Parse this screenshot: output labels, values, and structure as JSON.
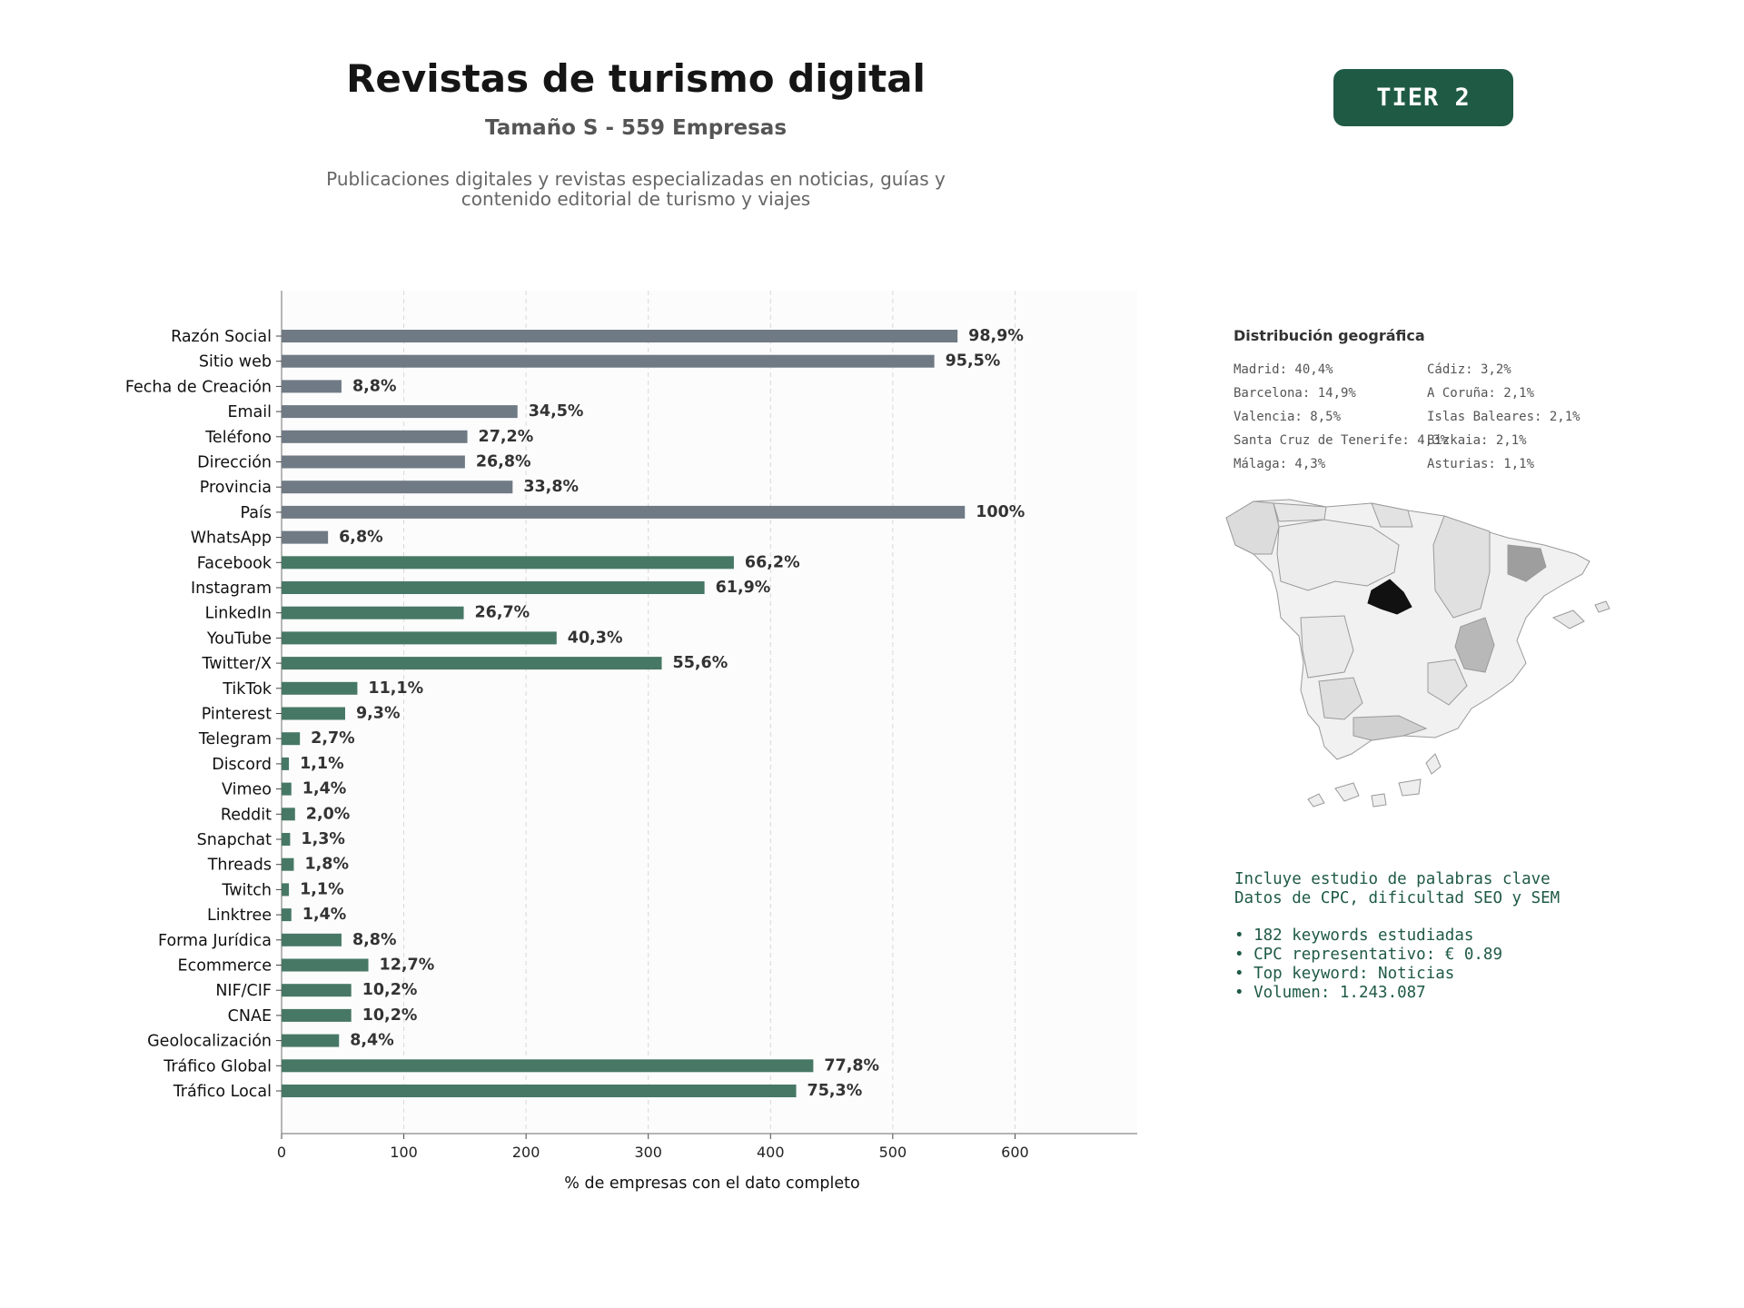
{
  "header": {
    "title": "Revistas de turismo digital",
    "subtitle": "Tamaño S - 559 Empresas",
    "description": "Publicaciones digitales y revistas especializadas en noticias, guías y contenido editorial de turismo y viajes",
    "tier": "TIER 2"
  },
  "chart_data": {
    "type": "bar",
    "orientation": "horizontal",
    "xlabel": "% de empresas con el dato completo",
    "ylabel": "",
    "xlim": [
      0,
      700
    ],
    "xticks": [
      0,
      100,
      200,
      300,
      400,
      500,
      600
    ],
    "grid": true,
    "categories": [
      "Razón Social",
      "Sitio web",
      "Fecha de Creación",
      "Email",
      "Teléfono",
      "Dirección",
      "Provincia",
      "País",
      "WhatsApp",
      "Facebook",
      "Instagram",
      "LinkedIn",
      "YouTube",
      "Twitter/X",
      "TikTok",
      "Pinterest",
      "Telegram",
      "Discord",
      "Vimeo",
      "Reddit",
      "Snapchat",
      "Threads",
      "Twitch",
      "Linktree",
      "Forma Jurídica",
      "Ecommerce",
      "NIF/CIF",
      "CNAE",
      "Geolocalización",
      "Tráfico Global",
      "Tráfico Local"
    ],
    "values": [
      553,
      534,
      49,
      193,
      152,
      150,
      189,
      559,
      38,
      370,
      346,
      149,
      225,
      311,
      62,
      52,
      15,
      6,
      8,
      11,
      7,
      10,
      6,
      8,
      49,
      71,
      57,
      57,
      47,
      435,
      421
    ],
    "labels": [
      "98,9%",
      "95,5%",
      "8,8%",
      "34,5%",
      "27,2%",
      "26,8%",
      "33,8%",
      "100%",
      "6,8%",
      "66,2%",
      "61,9%",
      "26,7%",
      "40,3%",
      "55,6%",
      "11,1%",
      "9,3%",
      "2,7%",
      "1,1%",
      "1,4%",
      "2,0%",
      "1,3%",
      "1,8%",
      "1,1%",
      "1,4%",
      "8,8%",
      "12,7%",
      "10,2%",
      "10,2%",
      "8,4%",
      "77,8%",
      "75,3%"
    ],
    "group_split": 9,
    "colors": {
      "basic": "#6f7a85",
      "digital": "#477866",
      "label": "#333333",
      "grid": "#d9d9d9",
      "plot_bg": "#fcfcfc"
    }
  },
  "geo": {
    "title": "Distribución geográfica",
    "items": [
      "Madrid: 40,4%",
      "Cádiz: 3,2%",
      "Barcelona: 14,9%",
      "A Coruña: 2,1%",
      "Valencia: 8,5%",
      "Islas Baleares: 2,1%",
      "Santa Cruz de Tenerife: 4,3%",
      "Bizkaia: 2,1%",
      "Málaga: 4,3%",
      "Asturias: 1,1%"
    ]
  },
  "info": {
    "line1": "Incluye estudio de palabras clave",
    "line2": "Datos de CPC, dificultad SEO y SEM",
    "bullet1": "• 182 keywords estudiadas",
    "bullet2": "• CPC representativo: € 0.89",
    "bullet3": "• Top keyword: Noticias",
    "bullet4": "• Volumen: 1.243.087"
  }
}
